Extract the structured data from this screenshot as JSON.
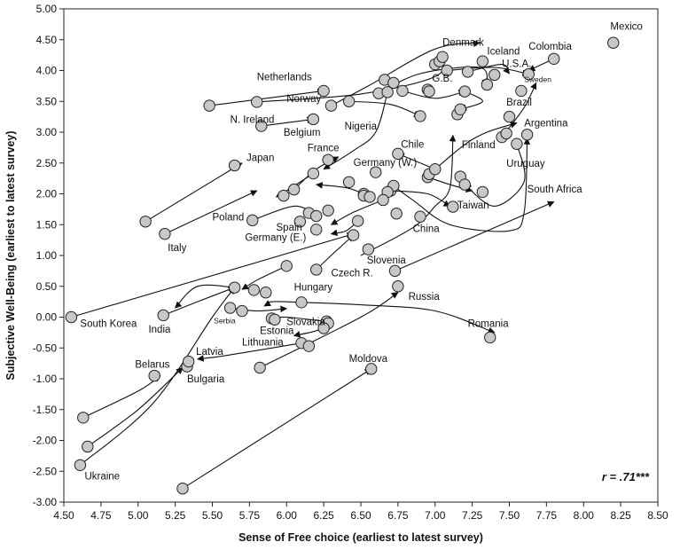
{
  "chart_data": {
    "type": "scatter",
    "title": "",
    "xlabel": "Sense of Free choice (earliest to latest survey)",
    "ylabel": "Subjective Well-Being (earliest to latest survey)",
    "xlim": [
      4.5,
      8.5
    ],
    "ylim": [
      -3.0,
      5.0
    ],
    "x_ticks": [
      "4.50",
      "4.75",
      "5.00",
      "5.25",
      "5.50",
      "5.75",
      "6.00",
      "6.25",
      "6.50",
      "6.75",
      "7.00",
      "7.25",
      "7.50",
      "7.75",
      "8.00",
      "8.25",
      "8.50"
    ],
    "y_ticks": [
      "5.00",
      "4.50",
      "4.00",
      "3.50",
      "3.00",
      "2.50",
      "2.00",
      "1.50",
      "1.00",
      "0.50",
      "0.00",
      "-0.50",
      "-1.00",
      "-1.50",
      "-2.00",
      "-2.50",
      "-3.00"
    ],
    "grid": false,
    "annotation": "r = .71***",
    "marker_color": "#c8c8c8",
    "points": [
      [
        5.48,
        3.43
      ],
      [
        5.8,
        3.49
      ],
      [
        6.25,
        3.67
      ],
      [
        5.83,
        3.1
      ],
      [
        6.18,
        3.21
      ],
      [
        6.3,
        3.43
      ],
      [
        6.42,
        3.5
      ],
      [
        6.62,
        3.63
      ],
      [
        6.66,
        3.85
      ],
      [
        6.72,
        3.8
      ],
      [
        6.68,
        3.65
      ],
      [
        6.78,
        3.67
      ],
      [
        6.9,
        3.26
      ],
      [
        6.95,
        3.69
      ],
      [
        6.96,
        3.66
      ],
      [
        7.0,
        4.1
      ],
      [
        7.03,
        4.15
      ],
      [
        7.05,
        4.22
      ],
      [
        7.08,
        4.0
      ],
      [
        7.2,
        3.66
      ],
      [
        7.22,
        3.98
      ],
      [
        7.15,
        3.29
      ],
      [
        7.17,
        3.37
      ],
      [
        7.32,
        4.15
      ],
      [
        7.35,
        3.77
      ],
      [
        7.4,
        3.93
      ],
      [
        7.63,
        3.94
      ],
      [
        7.58,
        3.67
      ],
      [
        7.8,
        4.19
      ],
      [
        8.2,
        4.45
      ],
      [
        7.5,
        3.25
      ],
      [
        7.45,
        2.92
      ],
      [
        7.48,
        2.98
      ],
      [
        7.55,
        2.81
      ],
      [
        7.62,
        2.96
      ],
      [
        6.75,
        2.65
      ],
      [
        6.6,
        2.35
      ],
      [
        6.95,
        2.27
      ],
      [
        6.96,
        2.32
      ],
      [
        7.0,
        2.4
      ],
      [
        7.17,
        2.28
      ],
      [
        7.2,
        2.15
      ],
      [
        7.32,
        2.03
      ],
      [
        7.12,
        1.79
      ],
      [
        6.9,
        1.63
      ],
      [
        6.74,
        1.68
      ],
      [
        6.7,
        2.05
      ],
      [
        6.72,
        2.13
      ],
      [
        6.68,
        2.03
      ],
      [
        6.52,
        2.0
      ],
      [
        6.52,
        1.97
      ],
      [
        6.56,
        1.95
      ],
      [
        6.65,
        1.9
      ],
      [
        6.42,
        2.19
      ],
      [
        6.18,
        2.33
      ],
      [
        6.05,
        2.07
      ],
      [
        5.98,
        1.97
      ],
      [
        6.28,
        2.55
      ],
      [
        5.65,
        2.46
      ],
      [
        5.05,
        1.55
      ],
      [
        5.18,
        1.35
      ],
      [
        5.77,
        1.57
      ],
      [
        6.28,
        1.73
      ],
      [
        6.15,
        1.69
      ],
      [
        6.2,
        1.64
      ],
      [
        6.09,
        1.55
      ],
      [
        6.2,
        1.42
      ],
      [
        6.45,
        1.33
      ],
      [
        6.48,
        1.56
      ],
      [
        6.55,
        1.1
      ],
      [
        6.73,
        0.75
      ],
      [
        6.0,
        0.83
      ],
      [
        6.2,
        0.77
      ],
      [
        6.75,
        0.5
      ],
      [
        5.65,
        0.48
      ],
      [
        5.78,
        0.44
      ],
      [
        5.86,
        0.4
      ],
      [
        5.62,
        0.15
      ],
      [
        5.7,
        0.1
      ],
      [
        5.9,
        -0.02
      ],
      [
        5.92,
        -0.04
      ],
      [
        6.1,
        0.24
      ],
      [
        6.27,
        -0.07
      ],
      [
        6.28,
        -0.1
      ],
      [
        6.25,
        -0.18
      ],
      [
        6.1,
        -0.42
      ],
      [
        6.15,
        -0.47
      ],
      [
        7.37,
        -0.33
      ],
      [
        5.17,
        0.03
      ],
      [
        4.55,
        0.0
      ],
      [
        5.82,
        -0.82
      ],
      [
        6.57,
        -0.84
      ],
      [
        5.33,
        -0.8
      ],
      [
        5.34,
        -0.72
      ],
      [
        5.11,
        -0.95
      ],
      [
        4.63,
        -1.63
      ],
      [
        4.66,
        -2.1
      ],
      [
        4.61,
        -2.4
      ],
      [
        5.3,
        -2.78
      ]
    ],
    "labels": [
      {
        "text": "Netherlands",
        "x": 5.8,
        "y": 3.84
      },
      {
        "text": "N. Ireland",
        "x": 5.62,
        "y": 3.15
      },
      {
        "text": "Norway",
        "x": 6.0,
        "y": 3.49
      },
      {
        "text": "Belgium",
        "x": 5.98,
        "y": 2.94
      },
      {
        "text": "Nigeria",
        "x": 6.39,
        "y": 3.04
      },
      {
        "text": "Denmark",
        "x": 7.05,
        "y": 4.4
      },
      {
        "text": "Iceland",
        "x": 7.35,
        "y": 4.26
      },
      {
        "text": "Colombia",
        "x": 7.63,
        "y": 4.34
      },
      {
        "text": "Mexico",
        "x": 8.18,
        "y": 4.66
      },
      {
        "text": "U.S.A.",
        "x": 7.45,
        "y": 4.06
      },
      {
        "text": "G.B.",
        "x": 6.98,
        "y": 3.82
      },
      {
        "text": "Sweden",
        "x": 7.6,
        "y": 3.81,
        "small": true
      },
      {
        "text": "Brazil",
        "x": 7.48,
        "y": 3.43
      },
      {
        "text": "Argentina",
        "x": 7.6,
        "y": 3.09
      },
      {
        "text": "Finland",
        "x": 7.18,
        "y": 2.74
      },
      {
        "text": "Chile",
        "x": 6.77,
        "y": 2.75
      },
      {
        "text": "Germany (W.)",
        "x": 6.45,
        "y": 2.45
      },
      {
        "text": "Uruguay",
        "x": 7.48,
        "y": 2.44
      },
      {
        "text": "Taiwan",
        "x": 7.15,
        "y": 1.76
      },
      {
        "text": "South Africa",
        "x": 7.62,
        "y": 2.02
      },
      {
        "text": "Japan",
        "x": 5.73,
        "y": 2.53
      },
      {
        "text": "France",
        "x": 6.14,
        "y": 2.69
      },
      {
        "text": "Poland",
        "x": 5.5,
        "y": 1.57
      },
      {
        "text": "Spain",
        "x": 5.93,
        "y": 1.4
      },
      {
        "text": "Germany (E.)",
        "x": 5.72,
        "y": 1.24
      },
      {
        "text": "Italy",
        "x": 5.2,
        "y": 1.07
      },
      {
        "text": "China",
        "x": 6.85,
        "y": 1.38
      },
      {
        "text": "Slovenia",
        "x": 6.54,
        "y": 0.87
      },
      {
        "text": "Czech R.",
        "x": 6.3,
        "y": 0.66
      },
      {
        "text": "Hungary",
        "x": 6.05,
        "y": 0.43
      },
      {
        "text": "Russia",
        "x": 6.82,
        "y": 0.28
      },
      {
        "text": "South Korea",
        "x": 4.61,
        "y": -0.16
      },
      {
        "text": "India",
        "x": 5.07,
        "y": -0.25
      },
      {
        "text": "Serbia",
        "x": 5.51,
        "y": -0.1,
        "small": true
      },
      {
        "text": "Estonia",
        "x": 5.82,
        "y": -0.27
      },
      {
        "text": "Slovakia",
        "x": 6.0,
        "y": -0.13
      },
      {
        "text": "Romania",
        "x": 7.22,
        "y": -0.16
      },
      {
        "text": "Lithuania",
        "x": 5.7,
        "y": -0.46
      },
      {
        "text": "Latvia",
        "x": 5.39,
        "y": -0.61
      },
      {
        "text": "Belarus",
        "x": 4.98,
        "y": -0.82
      },
      {
        "text": "Bulgaria",
        "x": 5.33,
        "y": -1.06
      },
      {
        "text": "Moldova",
        "x": 6.42,
        "y": -0.73
      },
      {
        "text": "Ukraine",
        "x": 4.64,
        "y": -2.63
      }
    ],
    "arrows": [
      [
        [
          5.48,
          3.43
        ],
        [
          6.25,
          3.67
        ]
      ],
      [
        [
          5.8,
          3.49
        ],
        [
          6.5,
          3.62
        ],
        [
          7.0,
          3.9
        ],
        [
          7.05,
          4.22
        ]
      ],
      [
        [
          6.3,
          3.43
        ],
        [
          6.55,
          3.75
        ],
        [
          7.0,
          4.35
        ],
        [
          7.3,
          4.45
        ]
      ],
      [
        [
          5.83,
          3.1
        ],
        [
          6.18,
          3.21
        ]
      ],
      [
        [
          6.42,
          3.5
        ],
        [
          6.7,
          3.45
        ],
        [
          6.9,
          3.26
        ]
      ],
      [
        [
          6.62,
          3.63
        ],
        [
          6.9,
          3.95
        ],
        [
          7.3,
          4.05
        ],
        [
          7.35,
          3.77
        ]
      ],
      [
        [
          7.08,
          4.0
        ],
        [
          7.4,
          4.05
        ],
        [
          7.63,
          3.94
        ]
      ],
      [
        [
          7.8,
          4.19
        ],
        [
          7.63,
          4.0
        ]
      ],
      [
        [
          7.22,
          3.98
        ],
        [
          7.45,
          4.1
        ],
        [
          7.5,
          3.95
        ]
      ],
      [
        [
          6.78,
          3.67
        ],
        [
          7.0,
          3.55
        ],
        [
          7.2,
          3.66
        ]
      ],
      [
        [
          7.2,
          3.66
        ],
        [
          7.32,
          3.5
        ],
        [
          7.17,
          3.37
        ]
      ],
      [
        [
          7.45,
          2.92
        ],
        [
          7.6,
          3.4
        ],
        [
          7.68,
          3.8
        ]
      ],
      [
        [
          6.68,
          3.65
        ],
        [
          6.6,
          3.0
        ],
        [
          6.45,
          2.7
        ],
        [
          6.25,
          2.4
        ]
      ],
      [
        [
          7.55,
          2.81
        ],
        [
          7.6,
          2.2
        ],
        [
          7.4,
          1.8
        ],
        [
          7.2,
          2.15
        ]
      ],
      [
        [
          7.0,
          2.4
        ],
        [
          7.2,
          2.8
        ],
        [
          7.35,
          3.0
        ],
        [
          7.55,
          3.15
        ]
      ],
      [
        [
          6.95,
          2.27
        ],
        [
          7.1,
          2.15
        ],
        [
          7.25,
          2.05
        ]
      ],
      [
        [
          7.0,
          2.4
        ],
        [
          6.85,
          2.55
        ],
        [
          6.75,
          2.65
        ]
      ],
      [
        [
          6.7,
          2.05
        ],
        [
          6.95,
          2.0
        ],
        [
          7.1,
          1.8
        ]
      ],
      [
        [
          6.72,
          2.13
        ],
        [
          6.85,
          1.9
        ],
        [
          7.1,
          1.5
        ],
        [
          7.5,
          1.4
        ],
        [
          7.6,
          1.7
        ],
        [
          7.62,
          2.9
        ]
      ],
      [
        [
          6.5,
          1.0
        ],
        [
          6.85,
          1.45
        ],
        [
          7.0,
          1.8
        ],
        [
          7.1,
          2.1
        ],
        [
          7.12,
          2.95
        ]
      ],
      [
        [
          6.65,
          1.9
        ],
        [
          6.45,
          1.7
        ],
        [
          6.3,
          1.5
        ]
      ],
      [
        [
          6.05,
          2.07
        ],
        [
          6.2,
          2.4
        ],
        [
          6.35,
          2.6
        ]
      ],
      [
        [
          6.18,
          2.33
        ],
        [
          6.0,
          2.05
        ],
        [
          5.93,
          1.95
        ]
      ],
      [
        [
          6.52,
          2.0
        ],
        [
          6.4,
          2.1
        ],
        [
          6.2,
          2.15
        ]
      ],
      [
        [
          5.05,
          1.55
        ],
        [
          5.7,
          2.5
        ]
      ],
      [
        [
          5.18,
          1.35
        ],
        [
          5.8,
          2.05
        ]
      ],
      [
        [
          5.77,
          1.57
        ],
        [
          6.05,
          1.8
        ],
        [
          6.2,
          1.65
        ]
      ],
      [
        [
          6.48,
          1.56
        ],
        [
          6.4,
          1.4
        ],
        [
          6.3,
          1.35
        ]
      ],
      [
        [
          6.2,
          0.77
        ],
        [
          6.3,
          1.0
        ],
        [
          6.45,
          1.33
        ]
      ],
      [
        [
          6.73,
          0.75
        ],
        [
          7.8,
          1.87
        ]
      ],
      [
        [
          4.55,
          0.0
        ],
        [
          6.45,
          1.35
        ]
      ],
      [
        [
          6.0,
          0.83
        ],
        [
          5.8,
          0.6
        ],
        [
          5.7,
          0.45
        ]
      ],
      [
        [
          5.65,
          0.48
        ],
        [
          5.4,
          0.5
        ],
        [
          5.25,
          0.15
        ]
      ],
      [
        [
          6.1,
          0.24
        ],
        [
          5.9,
          0.25
        ],
        [
          5.85,
          0.18
        ]
      ],
      [
        [
          5.62,
          0.15
        ],
        [
          5.8,
          0.1
        ],
        [
          6.0,
          0.14
        ]
      ],
      [
        [
          6.27,
          -0.07
        ],
        [
          6.0,
          0.0
        ],
        [
          5.9,
          -0.02
        ]
      ],
      [
        [
          6.1,
          0.24
        ],
        [
          6.5,
          0.2
        ],
        [
          7.0,
          0.1
        ],
        [
          7.4,
          -0.25
        ]
      ],
      [
        [
          6.28,
          -0.1
        ],
        [
          6.2,
          -0.22
        ],
        [
          6.05,
          -0.3
        ]
      ],
      [
        [
          6.1,
          -0.42
        ],
        [
          5.6,
          -0.62
        ],
        [
          5.4,
          -0.68
        ]
      ],
      [
        [
          5.82,
          -0.82
        ],
        [
          6.5,
          0.0
        ],
        [
          6.75,
          0.4
        ]
      ],
      [
        [
          5.3,
          -2.78
        ],
        [
          6.57,
          -0.84
        ]
      ],
      [
        [
          4.63,
          -1.63
        ],
        [
          5.0,
          -1.2
        ],
        [
          5.15,
          -0.95
        ]
      ],
      [
        [
          4.66,
          -2.1
        ],
        [
          5.0,
          -1.5
        ],
        [
          5.3,
          -0.82
        ]
      ],
      [
        [
          4.61,
          -2.4
        ],
        [
          5.1,
          -1.4
        ],
        [
          5.5,
          0.0
        ],
        [
          5.65,
          0.48
        ]
      ],
      [
        [
          5.17,
          0.03
        ],
        [
          5.4,
          0.25
        ],
        [
          5.65,
          0.48
        ]
      ]
    ]
  }
}
